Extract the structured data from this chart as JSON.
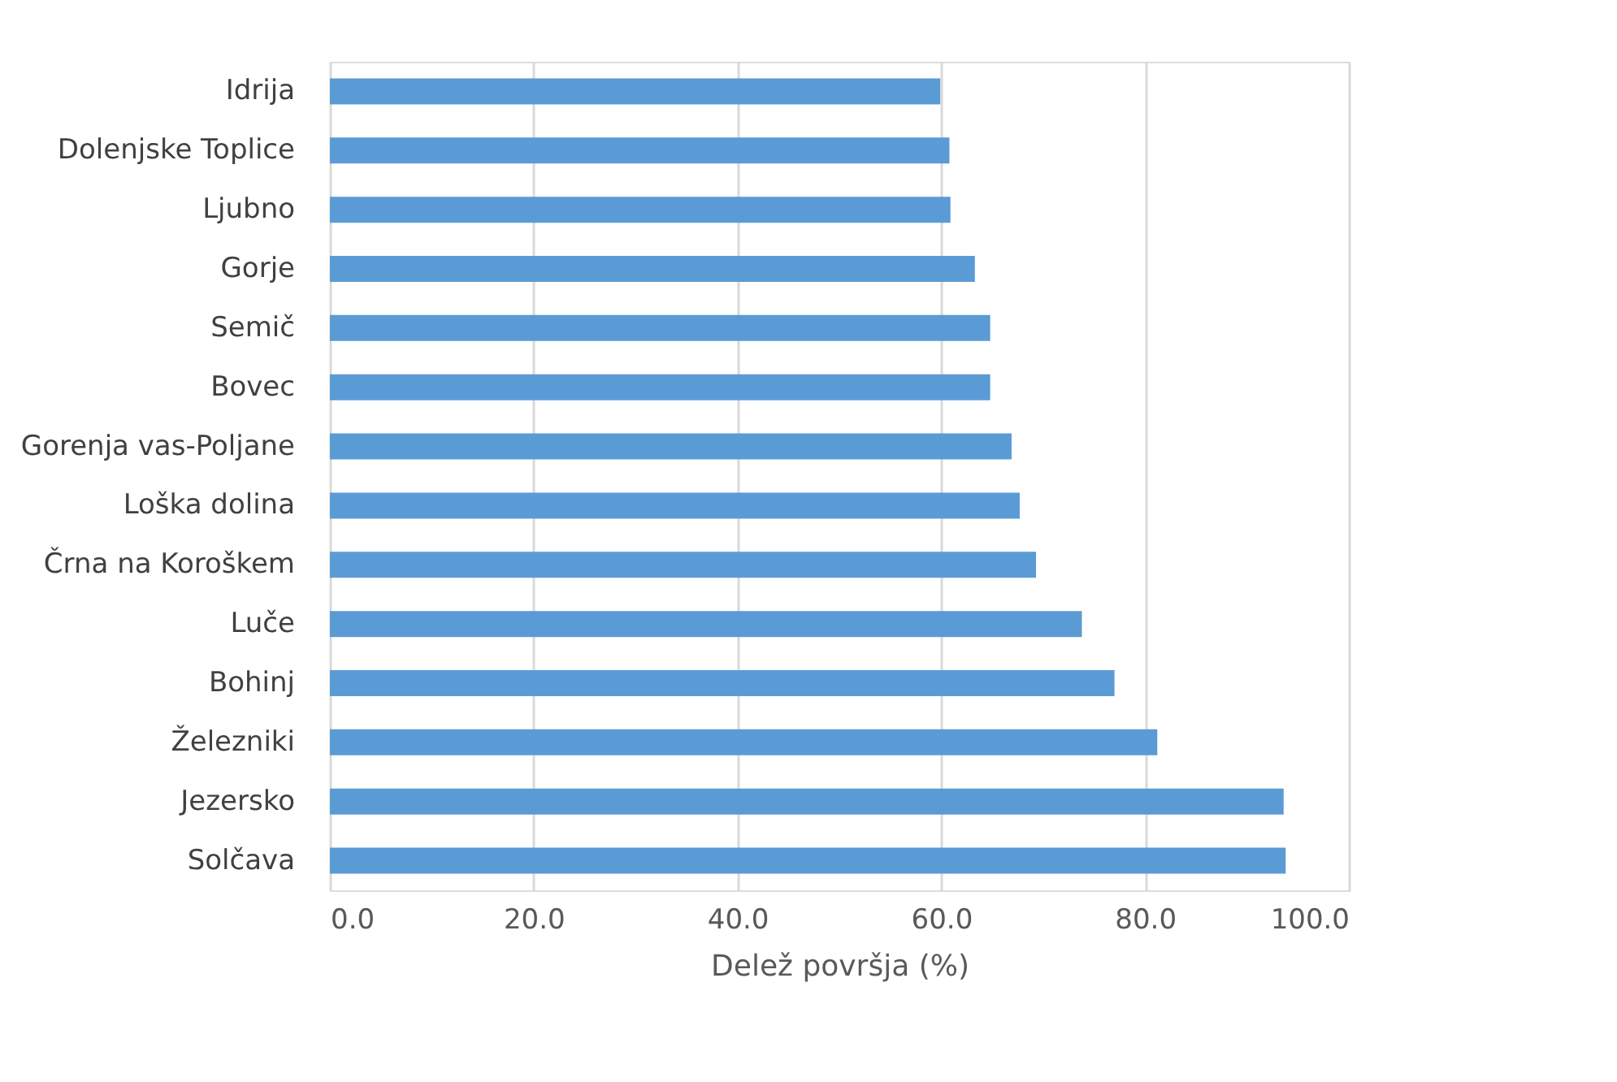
{
  "chart_data": {
    "type": "bar",
    "orientation": "horizontal",
    "xlabel": "Delež površja (%)",
    "categories": [
      "Idrija",
      "Dolenjske Toplice",
      "Ljubno",
      "Gorje",
      "Semič",
      "Bovec",
      "Gorenja vas-Poljane",
      "Loška dolina",
      "Črna na Koroškem",
      "Luče",
      "Bohinj",
      "Železniki",
      "Jezersko",
      "Solčava"
    ],
    "values": [
      59.9,
      60.8,
      60.9,
      63.3,
      64.8,
      64.8,
      66.9,
      67.7,
      69.3,
      73.8,
      77.0,
      81.2,
      93.6,
      93.8
    ],
    "color": "#5b9bd5",
    "xlim": [
      0,
      100
    ],
    "xticks": [
      {
        "value": 0,
        "label": "0.0"
      },
      {
        "value": 20,
        "label": "20.0"
      },
      {
        "value": 40,
        "label": "40.0"
      },
      {
        "value": 60,
        "label": "60.0"
      },
      {
        "value": 80,
        "label": "80.0"
      },
      {
        "value": 100,
        "label": "100.0"
      }
    ],
    "grid": "x"
  }
}
